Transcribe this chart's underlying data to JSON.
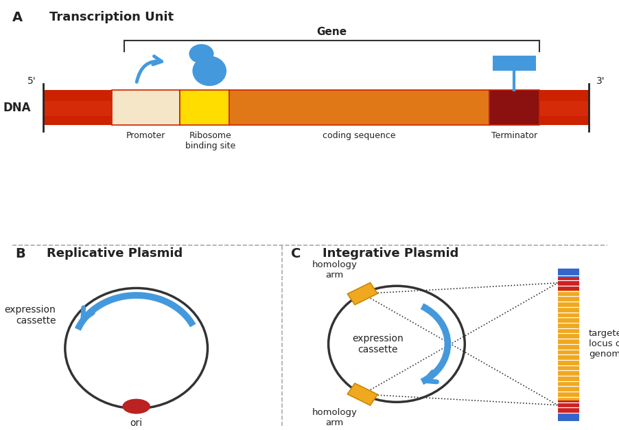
{
  "title_A": "Transcription Unit",
  "title_B": "Replicative Plasmid",
  "title_C": "Integrative Plasmid",
  "label_A": "A",
  "label_B": "B",
  "label_C": "C",
  "gene_label": "Gene",
  "dna_label": "DNA",
  "five_prime": "5'",
  "three_prime": "3'",
  "promoter_label": "Promoter",
  "rbs_label": "Ribosome\nbinding site",
  "coding_label": "coding sequence",
  "terminator_label": "Terminator",
  "expr_cassette_label": "expression\ncassette",
  "ori_label": "ori",
  "homology_arm_top": "homology\narm",
  "homology_arm_bottom": "homology\narm",
  "expr_cassette_C_label": "expression\ncassette",
  "targeted_locus_label": "targeted\nlocus on\ngenome",
  "bg_color": "#ffffff",
  "dna_bar_color": "#cc2200",
  "promoter_color": "#f5e6c8",
  "rbs_color": "#ffdd00",
  "coding_color": "#e07818",
  "terminator_color": "#8b1010",
  "blue_color": "#4499dd",
  "red_circle_color": "#bb2222",
  "homology_arm_color": "#f0a820",
  "genome_orange_color": "#f0a820",
  "genome_red_color": "#cc2222",
  "genome_blue_color": "#3366cc",
  "circle_color": "#333333",
  "divider_color": "#aaaaaa",
  "text_color": "#222222"
}
